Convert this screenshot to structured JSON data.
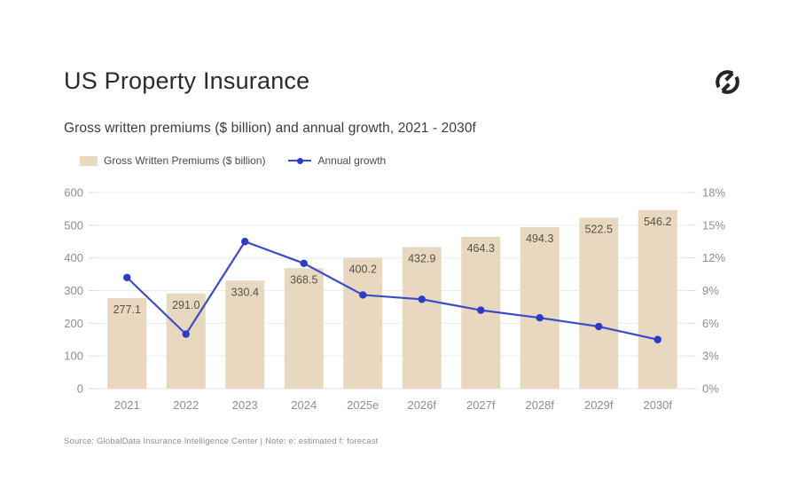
{
  "header": {
    "title": "US Property Insurance",
    "subtitle": "Gross written premiums ($ billion) and annual growth, 2021 - 2030f"
  },
  "legend": {
    "items": [
      {
        "label": "Gross Written Premiums ($ billion)",
        "marker": "bar-swatch",
        "color": "#e8d8bf"
      },
      {
        "label": "Annual growth",
        "marker": "line-dot",
        "color": "#3b4cc9"
      }
    ]
  },
  "source_note": "Source: GlobalData Insurance Intelligence Center | Note: e: estimated f: forecast",
  "colors": {
    "bar_fill": "#e8d8bf",
    "bar_label": "#57514a",
    "line": "#3b4cc9",
    "dot": "#2c3cc4",
    "axis_text": "#8e8e8e",
    "gridline": "#ededed",
    "baseline": "#e3e3e3",
    "tick": "#d9d9d9",
    "logo": "#262626"
  },
  "chart_data": {
    "type": "bar",
    "title": "Gross written premiums ($ billion) and annual growth, 2021 - 2030f",
    "categories": [
      "2021",
      "2022",
      "2023",
      "2024",
      "2025e",
      "2026f",
      "2027f",
      "2028f",
      "2029f",
      "2030f"
    ],
    "series": [
      {
        "name": "Gross Written Premiums ($ billion)",
        "type": "bar",
        "axis": "left",
        "values": [
          277.1,
          291.0,
          330.4,
          368.5,
          400.2,
          432.9,
          464.3,
          494.3,
          522.5,
          546.2
        ],
        "labels": [
          "277.1",
          "291.0",
          "330.4",
          "368.5",
          "400.2",
          "432.9",
          "464.3",
          "494.3",
          "522.5",
          "546.2"
        ]
      },
      {
        "name": "Annual growth",
        "type": "line",
        "axis": "right",
        "values": [
          10.2,
          5.0,
          13.5,
          11.5,
          8.6,
          8.2,
          7.2,
          6.5,
          5.7,
          4.5
        ]
      }
    ],
    "left_axis": {
      "label": "",
      "ticks": [
        0,
        100,
        200,
        300,
        400,
        500,
        600
      ],
      "range": [
        0,
        600
      ]
    },
    "right_axis": {
      "label": "",
      "ticks": [
        "0%",
        "3%",
        "6%",
        "9%",
        "12%",
        "15%",
        "18%"
      ],
      "range": [
        0,
        18
      ]
    },
    "grid": true,
    "legend_position": "top-left"
  }
}
